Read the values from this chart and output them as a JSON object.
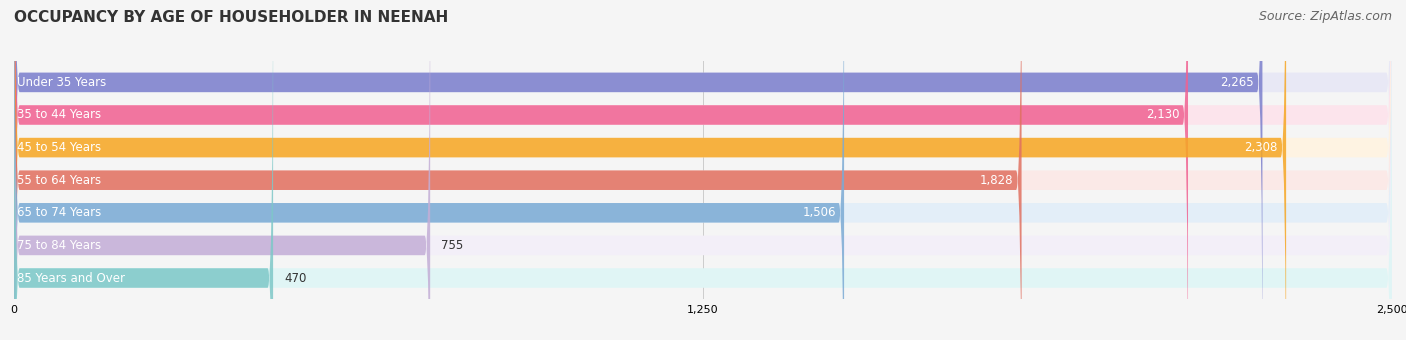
{
  "title": "OCCUPANCY BY AGE OF HOUSEHOLDER IN NEENAH",
  "source": "Source: ZipAtlas.com",
  "categories": [
    "Under 35 Years",
    "35 to 44 Years",
    "45 to 54 Years",
    "55 to 64 Years",
    "65 to 74 Years",
    "75 to 84 Years",
    "85 Years and Over"
  ],
  "values": [
    2265,
    2130,
    2308,
    1828,
    1506,
    755,
    470
  ],
  "bar_colors": [
    "#7b7fcc",
    "#f06292",
    "#f5a623",
    "#e07060",
    "#7baad4",
    "#c3aed6",
    "#7ec8c8"
  ],
  "bar_bg_colors": [
    "#e8e8f5",
    "#fce4ec",
    "#fef3e2",
    "#fbe9e7",
    "#e3eef8",
    "#f3eff8",
    "#e0f5f5"
  ],
  "xlim": [
    0,
    2500
  ],
  "xticks": [
    0,
    1250,
    2500
  ],
  "background_color": "#f5f5f5",
  "bar_height": 0.6,
  "title_fontsize": 11,
  "source_fontsize": 9,
  "label_fontsize": 8.5,
  "value_fontsize": 8.5
}
